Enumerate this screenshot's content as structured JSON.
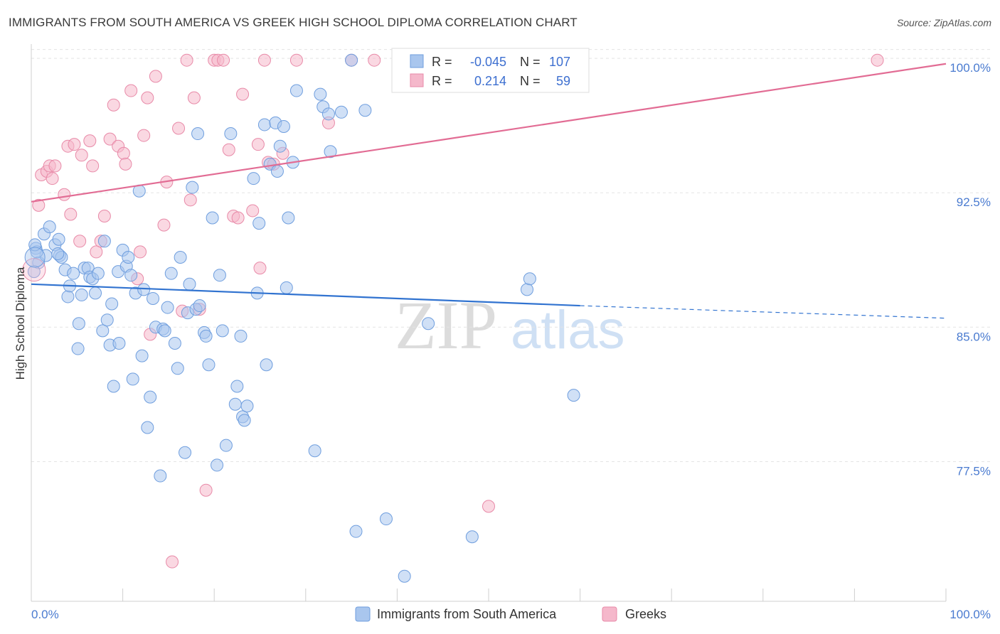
{
  "title": "IMMIGRANTS FROM SOUTH AMERICA VS GREEK HIGH SCHOOL DIPLOMA CORRELATION CHART",
  "source": "Source: ZipAtlas.com",
  "watermark": {
    "zip": "ZIP",
    "atlas": "atlas"
  },
  "colors": {
    "blue_fill": "#a9c6ee",
    "blue_stroke": "#6f9ede",
    "blue_line": "#3173d0",
    "pink_fill": "#f5b8cb",
    "pink_stroke": "#e88aa8",
    "pink_line": "#e26c94",
    "axis_label": "#4a7bd0",
    "grid": "#e3e3e3"
  },
  "legend": {
    "blue": {
      "r_label": "R =",
      "r_value": "-0.045",
      "n_label": "N =",
      "n_value": "107"
    },
    "pink": {
      "r_label": "R =",
      "r_value": "0.214",
      "n_label": "N =",
      "n_value": "59"
    }
  },
  "chart_data": {
    "type": "scatter",
    "title": "IMMIGRANTS FROM SOUTH AMERICA VS GREEK HIGH SCHOOL DIPLOMA CORRELATION CHART",
    "xlabel": "",
    "ylabel": "High School Diploma",
    "xlim": [
      0,
      100
    ],
    "ylim": [
      69.7,
      100.8
    ],
    "x_tick_labels": [
      "0.0%",
      "100.0%"
    ],
    "y_ticks": [
      77.5,
      85.0,
      92.5,
      100.0
    ],
    "y_tick_labels": [
      "77.5%",
      "85.0%",
      "92.5%",
      "100.0%"
    ],
    "grid": true,
    "legend_position": "bottom",
    "series": [
      {
        "name": "Immigrants from South America",
        "color": "#a9c6ee",
        "r": -0.045,
        "n": 107,
        "trend": {
          "x": [
            0,
            60
          ],
          "y": [
            87.4,
            86.2
          ],
          "dashed_to": [
            100,
            85.5
          ]
        },
        "points": [
          [
            0.5,
            89.4
          ],
          [
            0.8,
            88.6
          ],
          [
            1.4,
            90.2
          ],
          [
            1.6,
            89.0
          ],
          [
            2.0,
            90.6
          ],
          [
            2.6,
            89.6
          ],
          [
            3.0,
            89.9
          ],
          [
            3.1,
            89.0
          ],
          [
            3.3,
            88.9
          ],
          [
            3.7,
            88.2
          ],
          [
            4.0,
            86.7
          ],
          [
            4.2,
            87.3
          ],
          [
            4.6,
            88.0
          ],
          [
            5.1,
            83.8
          ],
          [
            5.2,
            85.2
          ],
          [
            5.5,
            86.8
          ],
          [
            5.8,
            88.3
          ],
          [
            6.2,
            88.3
          ],
          [
            6.4,
            87.8
          ],
          [
            6.7,
            87.7
          ],
          [
            7.0,
            86.9
          ],
          [
            7.3,
            88.0
          ],
          [
            7.8,
            84.8
          ],
          [
            8.0,
            89.8
          ],
          [
            8.3,
            85.4
          ],
          [
            8.6,
            84.0
          ],
          [
            8.8,
            86.3
          ],
          [
            9.0,
            81.7
          ],
          [
            9.5,
            88.1
          ],
          [
            9.6,
            84.1
          ],
          [
            10.0,
            89.3
          ],
          [
            10.4,
            88.4
          ],
          [
            10.6,
            88.9
          ],
          [
            10.9,
            87.9
          ],
          [
            11.1,
            82.1
          ],
          [
            11.4,
            86.9
          ],
          [
            11.8,
            92.6
          ],
          [
            12.1,
            83.4
          ],
          [
            12.3,
            87.1
          ],
          [
            12.7,
            79.4
          ],
          [
            13.0,
            81.1
          ],
          [
            13.3,
            86.6
          ],
          [
            13.6,
            85.0
          ],
          [
            14.1,
            76.7
          ],
          [
            14.4,
            84.9
          ],
          [
            14.6,
            84.8
          ],
          [
            14.9,
            86.1
          ],
          [
            15.3,
            88.0
          ],
          [
            15.7,
            84.1
          ],
          [
            16.0,
            82.7
          ],
          [
            16.3,
            88.9
          ],
          [
            16.8,
            78.0
          ],
          [
            17.1,
            85.8
          ],
          [
            17.3,
            87.4
          ],
          [
            17.6,
            92.8
          ],
          [
            18.0,
            86.0
          ],
          [
            18.2,
            95.8
          ],
          [
            18.4,
            86.2
          ],
          [
            18.9,
            84.7
          ],
          [
            19.1,
            84.5
          ],
          [
            19.4,
            82.9
          ],
          [
            19.8,
            91.1
          ],
          [
            20.3,
            77.3
          ],
          [
            20.6,
            87.9
          ],
          [
            20.9,
            84.8
          ],
          [
            21.3,
            78.4
          ],
          [
            21.8,
            95.8
          ],
          [
            22.3,
            80.7
          ],
          [
            22.5,
            81.7
          ],
          [
            22.9,
            84.5
          ],
          [
            23.1,
            80.0
          ],
          [
            23.3,
            79.8
          ],
          [
            23.6,
            80.6
          ],
          [
            24.3,
            93.3
          ],
          [
            24.7,
            86.9
          ],
          [
            24.9,
            90.8
          ],
          [
            25.5,
            96.3
          ],
          [
            25.7,
            82.9
          ],
          [
            26.1,
            94.1
          ],
          [
            26.7,
            96.4
          ],
          [
            26.9,
            93.7
          ],
          [
            27.2,
            95.1
          ],
          [
            27.6,
            96.2
          ],
          [
            27.9,
            87.2
          ],
          [
            28.1,
            91.1
          ],
          [
            28.6,
            94.2
          ],
          [
            29.0,
            98.2
          ],
          [
            31.0,
            78.1
          ],
          [
            31.6,
            98.0
          ],
          [
            31.9,
            97.3
          ],
          [
            32.5,
            96.9
          ],
          [
            32.7,
            94.8
          ],
          [
            33.9,
            97.0
          ],
          [
            35.0,
            99.9
          ],
          [
            35.5,
            73.6
          ],
          [
            36.5,
            97.1
          ],
          [
            38.8,
            74.3
          ],
          [
            40.8,
            71.1
          ],
          [
            43.4,
            85.2
          ],
          [
            48.2,
            73.3
          ],
          [
            54.2,
            87.1
          ],
          [
            54.5,
            87.7
          ],
          [
            59.3,
            81.2
          ],
          [
            0.3,
            88.1
          ],
          [
            0.6,
            89.2
          ],
          [
            2.9,
            89.1
          ],
          [
            0.4,
            89.6
          ]
        ]
      },
      {
        "name": "Greeks",
        "color": "#f5b8cb",
        "r": 0.214,
        "n": 59,
        "trend": {
          "x": [
            0,
            100
          ],
          "y": [
            92.0,
            99.7
          ]
        },
        "points": [
          [
            0.8,
            91.8
          ],
          [
            1.1,
            93.5
          ],
          [
            1.7,
            93.7
          ],
          [
            2.0,
            94.0
          ],
          [
            2.3,
            93.3
          ],
          [
            2.6,
            94.0
          ],
          [
            3.6,
            92.4
          ],
          [
            4.0,
            95.1
          ],
          [
            4.3,
            91.3
          ],
          [
            4.7,
            95.2
          ],
          [
            5.3,
            89.8
          ],
          [
            5.5,
            94.6
          ],
          [
            6.4,
            95.4
          ],
          [
            6.7,
            94.0
          ],
          [
            7.1,
            89.2
          ],
          [
            7.6,
            89.8
          ],
          [
            8.0,
            91.2
          ],
          [
            8.6,
            95.5
          ],
          [
            9.0,
            97.4
          ],
          [
            9.5,
            95.1
          ],
          [
            10.1,
            94.7
          ],
          [
            10.3,
            94.1
          ],
          [
            10.9,
            98.2
          ],
          [
            11.6,
            87.7
          ],
          [
            11.9,
            89.2
          ],
          [
            12.3,
            95.7
          ],
          [
            12.7,
            97.8
          ],
          [
            13.0,
            84.6
          ],
          [
            13.6,
            99.0
          ],
          [
            14.5,
            90.7
          ],
          [
            14.8,
            93.1
          ],
          [
            15.4,
            71.9
          ],
          [
            16.1,
            96.1
          ],
          [
            16.5,
            85.9
          ],
          [
            17.0,
            99.9
          ],
          [
            17.4,
            92.1
          ],
          [
            17.8,
            97.8
          ],
          [
            18.4,
            86.0
          ],
          [
            19.1,
            75.9
          ],
          [
            20.0,
            99.9
          ],
          [
            20.4,
            99.9
          ],
          [
            21.0,
            99.9
          ],
          [
            21.6,
            94.9
          ],
          [
            22.1,
            91.2
          ],
          [
            22.6,
            91.1
          ],
          [
            23.1,
            98.0
          ],
          [
            24.2,
            91.5
          ],
          [
            24.8,
            95.2
          ],
          [
            25.0,
            88.3
          ],
          [
            25.5,
            99.9
          ],
          [
            25.9,
            94.2
          ],
          [
            26.5,
            94.1
          ],
          [
            27.5,
            94.7
          ],
          [
            29.0,
            99.9
          ],
          [
            32.5,
            96.4
          ],
          [
            35.0,
            99.9
          ],
          [
            37.5,
            99.9
          ],
          [
            50.0,
            75.0
          ],
          [
            92.5,
            99.9
          ]
        ]
      }
    ]
  },
  "bottom_legend": [
    "Immigrants from South America",
    "Greeks"
  ]
}
